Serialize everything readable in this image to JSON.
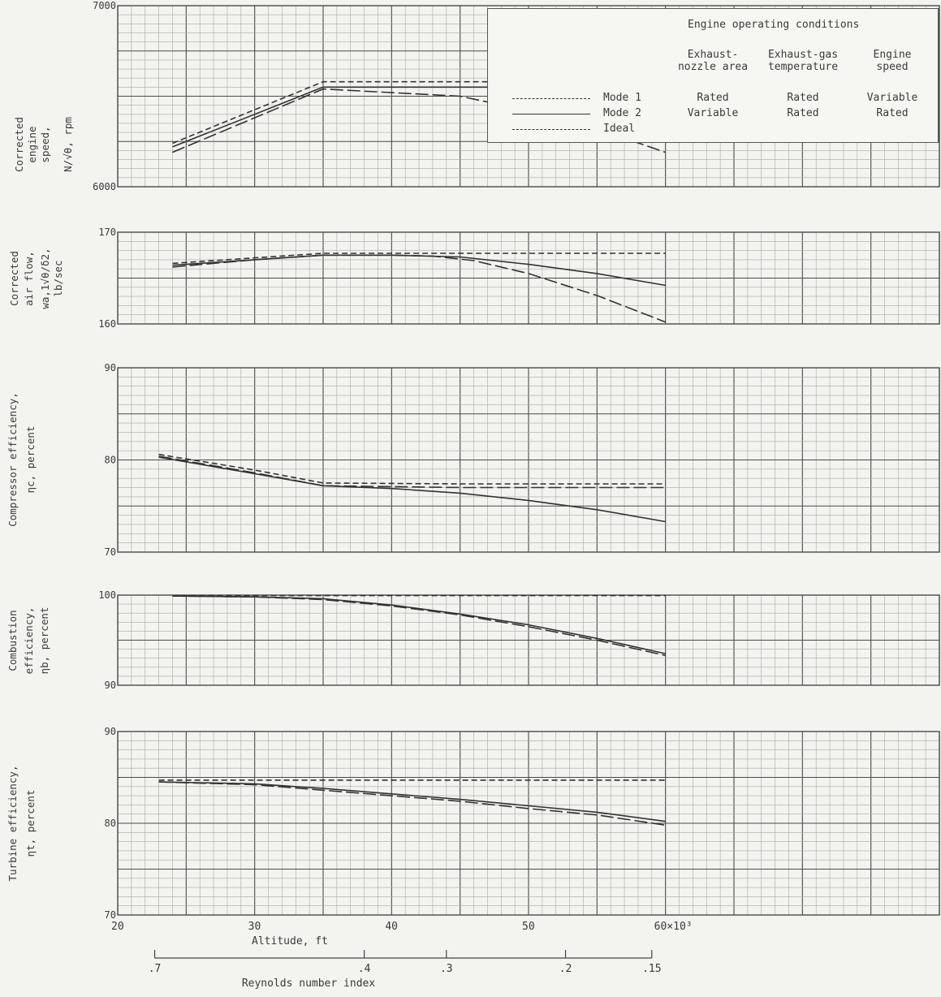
{
  "legend": {
    "title": "Engine operating conditions",
    "columns": [
      {
        "line1": "Exhaust-",
        "line2": "nozzle area"
      },
      {
        "line1": "Exhaust-gas",
        "line2": "temperature"
      },
      {
        "line1": "Engine",
        "line2": "speed"
      }
    ],
    "rows": [
      {
        "name": "Mode 1",
        "style": "long-dash",
        "values": [
          "Rated",
          "Rated",
          "Variable"
        ]
      },
      {
        "name": "Mode 2",
        "style": "solid",
        "values": [
          "Variable",
          "Rated",
          "Rated"
        ]
      },
      {
        "name": "Ideal",
        "style": "short-dash",
        "values": [
          "",
          "",
          ""
        ]
      }
    ]
  },
  "x_axis": {
    "label": "Altitude, ft",
    "range": [
      20000,
      80000
    ],
    "ticks": [
      {
        "value": 20000,
        "label": "20"
      },
      {
        "value": 30000,
        "label": "30"
      },
      {
        "value": 40000,
        "label": "40"
      },
      {
        "value": 50000,
        "label": "50"
      },
      {
        "value": 60000,
        "label": "60×10³"
      }
    ]
  },
  "reynolds_axis": {
    "label": "Reynolds number index",
    "ticks": [
      {
        "altitude": 22700,
        "label": ".7"
      },
      {
        "altitude": 38000,
        "label": ".4"
      },
      {
        "altitude": 44000,
        "label": ".3"
      },
      {
        "altitude": 52700,
        "label": ".2"
      },
      {
        "altitude": 59000,
        "label": ".15"
      }
    ]
  },
  "colors": {
    "background": "#f3f3f0",
    "grid_minor": "#a8a8a8",
    "grid_major": "#4a4a4a",
    "curve": "#333333"
  },
  "chart_data": [
    {
      "type": "line",
      "ylabel": [
        "Corrected",
        "engine",
        "speed,",
        "N/√θ, rpm"
      ],
      "ylim": [
        6000,
        7000
      ],
      "yticks": [
        {
          "value": 6000,
          "label": "6000"
        },
        {
          "value": 7000,
          "label": "7000"
        }
      ],
      "series": [
        {
          "name": "Mode 1",
          "style": "long-dash",
          "x": [
            24000,
            35000,
            45000,
            50000,
            55000,
            60000
          ],
          "y": [
            6190,
            6540,
            6500,
            6420,
            6320,
            6190
          ]
        },
        {
          "name": "Mode 2",
          "style": "solid",
          "x": [
            24000,
            35000,
            45000,
            60000
          ],
          "y": [
            6220,
            6550,
            6550,
            6550
          ]
        },
        {
          "name": "Ideal",
          "style": "short-dash",
          "x": [
            24000,
            35000,
            45000,
            60000
          ],
          "y": [
            6240,
            6580,
            6580,
            6580
          ]
        }
      ]
    },
    {
      "type": "line",
      "ylabel": [
        "Corrected",
        "air flow,",
        "wa,1√θ/δ2,",
        "lb/sec"
      ],
      "ylim": [
        160,
        170
      ],
      "yticks": [
        {
          "value": 160,
          "label": "160"
        },
        {
          "value": 170,
          "label": "170"
        }
      ],
      "series": [
        {
          "name": "Mode 1",
          "style": "long-dash",
          "x": [
            24000,
            30000,
            35000,
            40000,
            43000,
            46000,
            50000,
            55000,
            60000
          ],
          "y": [
            166.2,
            167.0,
            167.5,
            167.5,
            167.4,
            166.9,
            165.5,
            163.1,
            160.2
          ]
        },
        {
          "name": "Mode 2",
          "style": "solid",
          "x": [
            24000,
            30000,
            35000,
            40000,
            45000,
            50000,
            55000,
            60000
          ],
          "y": [
            166.4,
            167.0,
            167.5,
            167.5,
            167.3,
            166.5,
            165.5,
            164.2
          ]
        },
        {
          "name": "Ideal",
          "style": "short-dash",
          "x": [
            24000,
            30000,
            35000,
            45000,
            60000
          ],
          "y": [
            166.6,
            167.2,
            167.7,
            167.7,
            167.7
          ]
        }
      ]
    },
    {
      "type": "line",
      "ylabel": [
        "Compressor efficiency,",
        "ηc, percent"
      ],
      "ylim": [
        70,
        90
      ],
      "yticks": [
        {
          "value": 70,
          "label": "70"
        },
        {
          "value": 80,
          "label": "80"
        },
        {
          "value": 90,
          "label": "90"
        }
      ],
      "series": [
        {
          "name": "Mode 1",
          "style": "long-dash",
          "x": [
            23000,
            30000,
            35000,
            45000,
            60000
          ],
          "y": [
            80.4,
            78.6,
            77.2,
            77.0,
            77.0
          ]
        },
        {
          "name": "Mode 2",
          "style": "solid",
          "x": [
            23000,
            30000,
            35000,
            40000,
            45000,
            50000,
            55000,
            60000
          ],
          "y": [
            80.3,
            78.5,
            77.2,
            76.9,
            76.4,
            75.6,
            74.6,
            73.3
          ]
        },
        {
          "name": "Ideal",
          "style": "short-dash",
          "x": [
            23000,
            30000,
            35000,
            45000,
            60000
          ],
          "y": [
            80.6,
            78.9,
            77.5,
            77.4,
            77.4
          ]
        }
      ]
    },
    {
      "type": "line",
      "ylabel": [
        "Combustion",
        "efficiency,",
        "ηb, percent"
      ],
      "ylim": [
        90,
        100
      ],
      "yticks": [
        {
          "value": 90,
          "label": "90"
        },
        {
          "value": 100,
          "label": "100"
        }
      ],
      "series": [
        {
          "name": "Mode 1",
          "style": "long-dash",
          "x": [
            24000,
            30000,
            35000,
            40000,
            45000,
            50000,
            55000,
            60000
          ],
          "y": [
            99.9,
            99.8,
            99.5,
            98.8,
            97.8,
            96.5,
            95.0,
            93.3
          ]
        },
        {
          "name": "Mode 2",
          "style": "solid",
          "x": [
            24000,
            30000,
            35000,
            40000,
            45000,
            50000,
            55000,
            60000
          ],
          "y": [
            99.9,
            99.8,
            99.6,
            98.9,
            97.9,
            96.7,
            95.2,
            93.5
          ]
        },
        {
          "name": "Ideal",
          "style": "short-dash",
          "x": [
            24000,
            60000
          ],
          "y": [
            99.95,
            99.95
          ]
        }
      ]
    },
    {
      "type": "line",
      "ylabel": [
        "Turbine efficiency,",
        "ηt, percent"
      ],
      "ylim": [
        70,
        90
      ],
      "yticks": [
        {
          "value": 70,
          "label": "70"
        },
        {
          "value": 80,
          "label": "80"
        },
        {
          "value": 90,
          "label": "90"
        }
      ],
      "series": [
        {
          "name": "Mode 1",
          "style": "long-dash",
          "x": [
            23000,
            30000,
            35000,
            40000,
            45000,
            50000,
            55000,
            60000
          ],
          "y": [
            84.5,
            84.2,
            83.6,
            83.0,
            82.4,
            81.6,
            80.9,
            79.8
          ]
        },
        {
          "name": "Mode 2",
          "style": "solid",
          "x": [
            23000,
            30000,
            35000,
            40000,
            45000,
            50000,
            55000,
            60000
          ],
          "y": [
            84.5,
            84.3,
            83.8,
            83.2,
            82.6,
            81.9,
            81.2,
            80.2
          ]
        },
        {
          "name": "Ideal",
          "style": "short-dash",
          "x": [
            23000,
            60000
          ],
          "y": [
            84.7,
            84.7
          ]
        }
      ]
    }
  ]
}
